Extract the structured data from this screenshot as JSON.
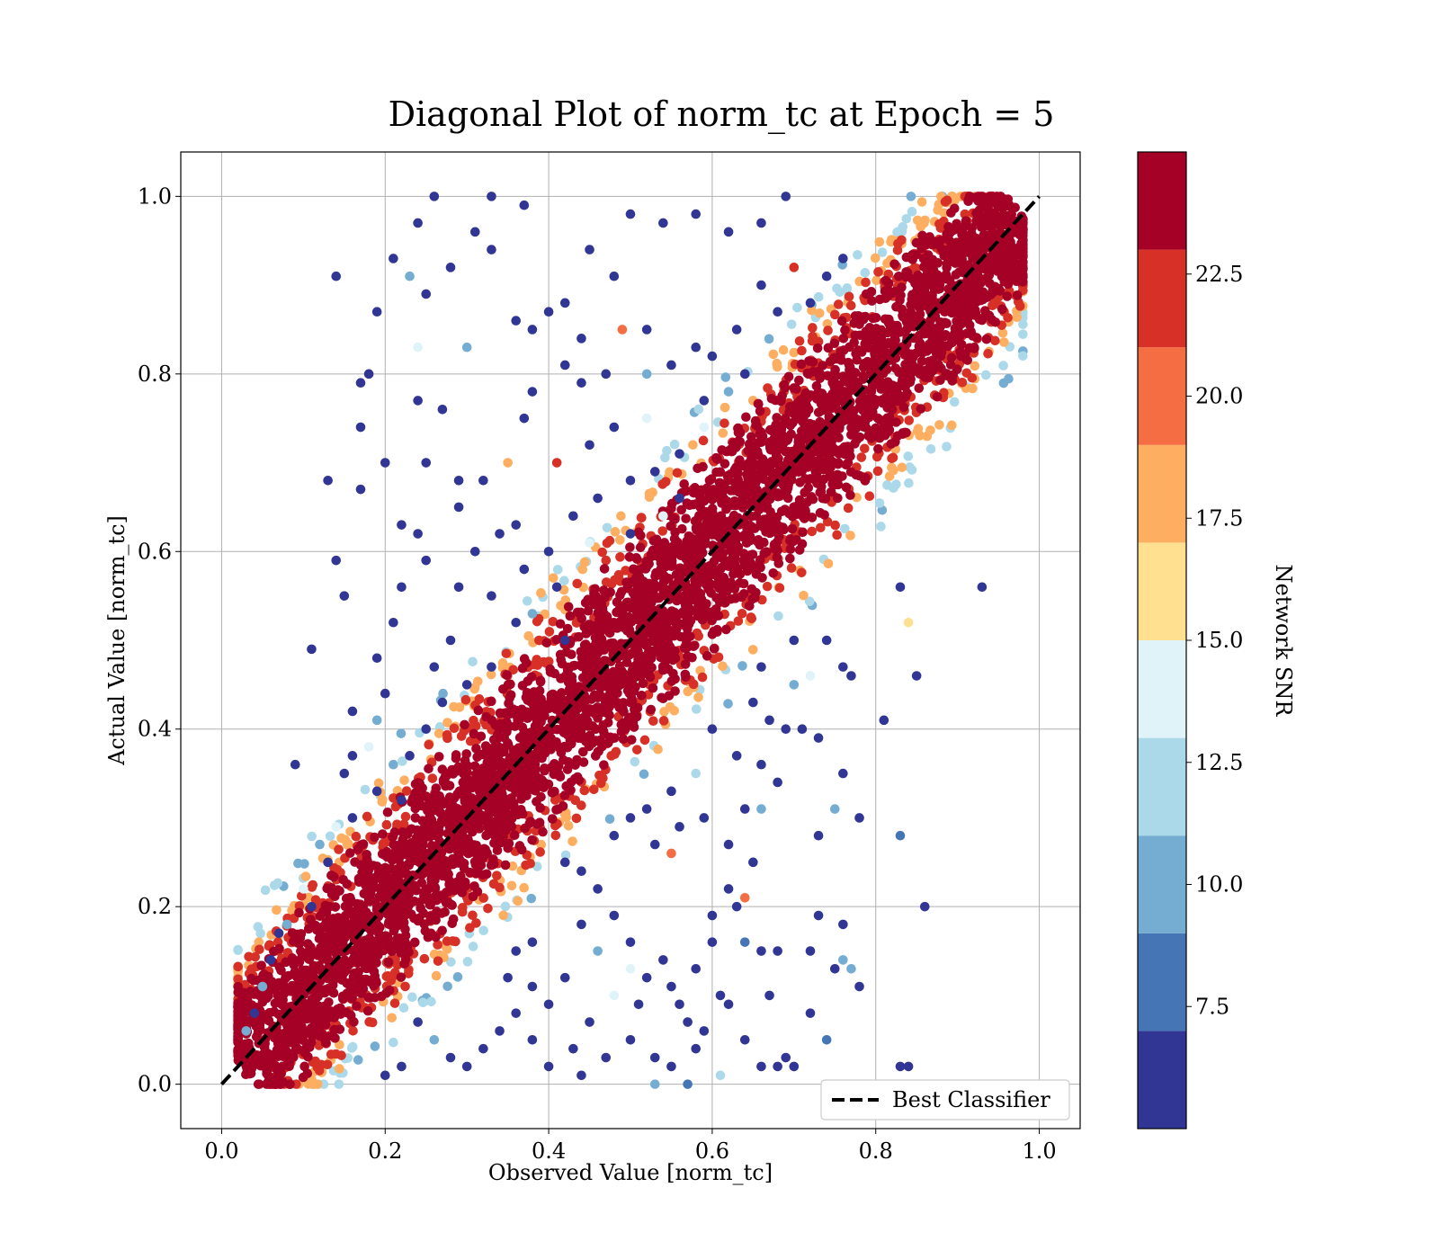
{
  "chart_data": {
    "type": "scatter",
    "title": "Diagonal Plot of norm_tc at Epoch = 5",
    "xlabel": "Observed Value [norm_tc]",
    "ylabel": "Actual Value [norm_tc]",
    "xlim": [
      -0.05,
      1.05
    ],
    "ylim": [
      -0.05,
      1.05
    ],
    "xticks": [
      0.0,
      0.2,
      0.4,
      0.6,
      0.8,
      1.0
    ],
    "yticks": [
      0.0,
      0.2,
      0.4,
      0.6,
      0.8,
      1.0
    ],
    "xtick_labels": [
      "0.0",
      "0.2",
      "0.4",
      "0.6",
      "0.8",
      "1.0"
    ],
    "ytick_labels": [
      "0.0",
      "0.2",
      "0.4",
      "0.6",
      "0.8",
      "1.0"
    ],
    "grid": true,
    "legend": {
      "position": "lower-right",
      "entries": [
        "Best Classifier"
      ]
    },
    "reference_line": {
      "name": "Best Classifier",
      "style": "dashed",
      "color": "#000000",
      "points": [
        [
          0.0,
          0.0
        ],
        [
          1.0,
          1.0
        ]
      ]
    },
    "colorbar": {
      "label": "Network SNR",
      "range": [
        5.0,
        25.0
      ],
      "ticks": [
        7.5,
        10.0,
        12.5,
        15.0,
        17.5,
        20.0,
        22.5
      ],
      "tick_labels": [
        "7.5",
        "10.0",
        "12.5",
        "15.0",
        "17.5",
        "20.0",
        "22.5"
      ],
      "bins": [
        5.0,
        7.0,
        9.0,
        11.0,
        13.0,
        15.0,
        17.0,
        19.0,
        21.0,
        23.0,
        25.0
      ],
      "colors": [
        "#313695",
        "#4575b4",
        "#74add1",
        "#abd9e9",
        "#e0f3f8",
        "#fee090",
        "#fdae61",
        "#f46d43",
        "#d73027",
        "#a50026"
      ]
    },
    "series": [
      {
        "values_note_points": "x=observed, y=actual, c=SNR",
        "points": [
          [
            0.14,
            0.91,
            6
          ],
          [
            0.19,
            0.87,
            6
          ],
          [
            0.17,
            0.79,
            6
          ],
          [
            0.18,
            0.8,
            6
          ],
          [
            0.17,
            0.74,
            6
          ],
          [
            0.13,
            0.68,
            6
          ],
          [
            0.17,
            0.67,
            6
          ],
          [
            0.2,
            0.7,
            6
          ],
          [
            0.14,
            0.59,
            6
          ],
          [
            0.15,
            0.55,
            6
          ],
          [
            0.11,
            0.49,
            6
          ],
          [
            0.09,
            0.36,
            6
          ],
          [
            0.21,
            0.93,
            6
          ],
          [
            0.24,
            0.97,
            6
          ],
          [
            0.26,
            1.0,
            6
          ],
          [
            0.33,
            1.0,
            6
          ],
          [
            0.37,
            0.99,
            6
          ],
          [
            0.31,
            0.96,
            6
          ],
          [
            0.33,
            0.94,
            6
          ],
          [
            0.28,
            0.92,
            6
          ],
          [
            0.25,
            0.89,
            6
          ],
          [
            0.24,
            0.77,
            6
          ],
          [
            0.27,
            0.76,
            6
          ],
          [
            0.25,
            0.7,
            6
          ],
          [
            0.29,
            0.68,
            6
          ],
          [
            0.22,
            0.63,
            6
          ],
          [
            0.24,
            0.62,
            6
          ],
          [
            0.25,
            0.59,
            6
          ],
          [
            0.22,
            0.56,
            6
          ],
          [
            0.3,
            0.83,
            10
          ],
          [
            0.23,
            0.91,
            10
          ],
          [
            0.24,
            0.83,
            13
          ],
          [
            0.21,
            0.52,
            6
          ],
          [
            0.19,
            0.48,
            6
          ],
          [
            0.2,
            0.44,
            6
          ],
          [
            0.16,
            0.42,
            6
          ],
          [
            0.18,
            0.38,
            13
          ],
          [
            0.16,
            0.37,
            6
          ],
          [
            0.19,
            0.41,
            10
          ],
          [
            0.15,
            0.35,
            6
          ],
          [
            0.5,
            0.98,
            6
          ],
          [
            0.54,
            0.97,
            6
          ],
          [
            0.58,
            0.98,
            6
          ],
          [
            0.62,
            0.96,
            6
          ],
          [
            0.66,
            0.97,
            6
          ],
          [
            0.69,
            1.0,
            6
          ],
          [
            0.45,
            0.94,
            6
          ],
          [
            0.48,
            0.91,
            6
          ],
          [
            0.4,
            0.87,
            6
          ],
          [
            0.42,
            0.88,
            6
          ],
          [
            0.44,
            0.84,
            6
          ],
          [
            0.36,
            0.86,
            6
          ],
          [
            0.38,
            0.85,
            6
          ],
          [
            0.42,
            0.81,
            6
          ],
          [
            0.44,
            0.79,
            6
          ],
          [
            0.38,
            0.78,
            6
          ],
          [
            0.37,
            0.75,
            6
          ],
          [
            0.41,
            0.7,
            22
          ],
          [
            0.49,
            0.85,
            20
          ],
          [
            0.47,
            0.8,
            6
          ],
          [
            0.52,
            0.8,
            10
          ],
          [
            0.55,
            0.81,
            6
          ],
          [
            0.58,
            0.83,
            6
          ],
          [
            0.6,
            0.82,
            6
          ],
          [
            0.63,
            0.85,
            6
          ],
          [
            0.7,
            0.92,
            22
          ],
          [
            0.72,
            0.88,
            6
          ],
          [
            0.68,
            0.87,
            6
          ],
          [
            0.74,
            0.91,
            6
          ],
          [
            0.76,
            0.93,
            6
          ],
          [
            0.66,
            0.9,
            6
          ],
          [
            0.52,
            0.85,
            6
          ],
          [
            0.35,
            0.7,
            18
          ],
          [
            0.34,
            0.62,
            6
          ],
          [
            0.36,
            0.63,
            6
          ],
          [
            0.31,
            0.6,
            6
          ],
          [
            0.29,
            0.56,
            6
          ],
          [
            0.28,
            0.5,
            6
          ],
          [
            0.26,
            0.47,
            6
          ],
          [
            0.29,
            0.65,
            6
          ],
          [
            0.32,
            0.68,
            6
          ],
          [
            0.33,
            0.55,
            6
          ],
          [
            0.37,
            0.58,
            6
          ],
          [
            0.45,
            0.72,
            6
          ],
          [
            0.48,
            0.74,
            6
          ],
          [
            0.43,
            0.64,
            6
          ],
          [
            0.46,
            0.66,
            6
          ],
          [
            0.5,
            0.68,
            6
          ],
          [
            0.53,
            0.69,
            6
          ],
          [
            0.56,
            0.71,
            6
          ],
          [
            0.59,
            0.77,
            6
          ],
          [
            0.62,
            0.78,
            10
          ],
          [
            0.64,
            0.8,
            6
          ],
          [
            0.59,
            0.74,
            13
          ],
          [
            0.52,
            0.75,
            13
          ],
          [
            0.41,
            0.56,
            6
          ],
          [
            0.45,
            0.61,
            13
          ],
          [
            0.5,
            0.62,
            6
          ],
          [
            0.54,
            0.64,
            13
          ],
          [
            0.56,
            0.66,
            6
          ],
          [
            0.4,
            0.6,
            6
          ],
          [
            0.38,
            0.53,
            10
          ],
          [
            0.42,
            0.5,
            6
          ],
          [
            0.36,
            0.52,
            6
          ],
          [
            0.33,
            0.47,
            6
          ],
          [
            0.3,
            0.45,
            6
          ],
          [
            0.27,
            0.43,
            6
          ],
          [
            0.25,
            0.4,
            6
          ],
          [
            0.23,
            0.37,
            6
          ],
          [
            0.21,
            0.36,
            10
          ],
          [
            0.22,
            0.32,
            6
          ],
          [
            0.14,
            0.29,
            13
          ],
          [
            0.12,
            0.27,
            10
          ],
          [
            0.13,
            0.25,
            6
          ],
          [
            0.16,
            0.3,
            6
          ],
          [
            0.19,
            0.33,
            6
          ],
          [
            0.1,
            0.22,
            13
          ],
          [
            0.11,
            0.2,
            6
          ],
          [
            0.08,
            0.18,
            10
          ],
          [
            0.07,
            0.17,
            6
          ],
          [
            0.06,
            0.14,
            6
          ],
          [
            0.05,
            0.11,
            10
          ],
          [
            0.04,
            0.08,
            6
          ],
          [
            0.03,
            0.06,
            10
          ],
          [
            0.93,
            0.56,
            6
          ],
          [
            0.83,
            0.56,
            6
          ],
          [
            0.84,
            0.52,
            16
          ],
          [
            0.85,
            0.46,
            6
          ],
          [
            0.81,
            0.41,
            6
          ],
          [
            0.77,
            0.46,
            6
          ],
          [
            0.76,
            0.47,
            6
          ],
          [
            0.74,
            0.5,
            6
          ],
          [
            0.7,
            0.5,
            6
          ],
          [
            0.72,
            0.46,
            14
          ],
          [
            0.66,
            0.47,
            6
          ],
          [
            0.7,
            0.45,
            10
          ],
          [
            0.67,
            0.41,
            6
          ],
          [
            0.65,
            0.43,
            6
          ],
          [
            0.63,
            0.37,
            6
          ],
          [
            0.69,
            0.4,
            6
          ],
          [
            0.71,
            0.4,
            6
          ],
          [
            0.73,
            0.39,
            6
          ],
          [
            0.66,
            0.36,
            6
          ],
          [
            0.76,
            0.35,
            6
          ],
          [
            0.68,
            0.34,
            6
          ],
          [
            0.6,
            0.4,
            6
          ],
          [
            0.58,
            0.35,
            11
          ],
          [
            0.55,
            0.33,
            6
          ],
          [
            0.52,
            0.31,
            6
          ],
          [
            0.5,
            0.3,
            6
          ],
          [
            0.48,
            0.28,
            6
          ],
          [
            0.53,
            0.27,
            6
          ],
          [
            0.56,
            0.29,
            6
          ],
          [
            0.59,
            0.3,
            6
          ],
          [
            0.62,
            0.27,
            6
          ],
          [
            0.65,
            0.25,
            6
          ],
          [
            0.66,
            0.31,
            10
          ],
          [
            0.64,
            0.31,
            6
          ],
          [
            0.55,
            0.26,
            20
          ],
          [
            0.75,
            0.31,
            10
          ],
          [
            0.78,
            0.3,
            6
          ],
          [
            0.83,
            0.28,
            8
          ],
          [
            0.86,
            0.2,
            6
          ],
          [
            0.73,
            0.19,
            6
          ],
          [
            0.76,
            0.18,
            6
          ],
          [
            0.77,
            0.13,
            10
          ],
          [
            0.78,
            0.11,
            6
          ],
          [
            0.75,
            0.13,
            6
          ],
          [
            0.76,
            0.14,
            10
          ],
          [
            0.74,
            0.05,
            8
          ],
          [
            0.72,
            0.08,
            6
          ],
          [
            0.83,
            0.02,
            6
          ],
          [
            0.84,
            0.02,
            6
          ],
          [
            0.68,
            0.02,
            6
          ],
          [
            0.69,
            0.03,
            6
          ],
          [
            0.7,
            0.02,
            6
          ],
          [
            0.66,
            0.02,
            6
          ],
          [
            0.67,
            0.1,
            6
          ],
          [
            0.68,
            0.15,
            6
          ],
          [
            0.66,
            0.15,
            6
          ],
          [
            0.64,
            0.16,
            8
          ],
          [
            0.64,
            0.21,
            20
          ],
          [
            0.62,
            0.22,
            6
          ],
          [
            0.63,
            0.2,
            6
          ],
          [
            0.6,
            0.19,
            6
          ],
          [
            0.6,
            0.16,
            6
          ],
          [
            0.61,
            0.1,
            6
          ],
          [
            0.59,
            0.06,
            6
          ],
          [
            0.57,
            0.07,
            6
          ],
          [
            0.56,
            0.09,
            6
          ],
          [
            0.58,
            0.13,
            6
          ],
          [
            0.55,
            0.11,
            6
          ],
          [
            0.54,
            0.14,
            6
          ],
          [
            0.52,
            0.12,
            6
          ],
          [
            0.5,
            0.13,
            13
          ],
          [
            0.5,
            0.16,
            6
          ],
          [
            0.48,
            0.19,
            6
          ],
          [
            0.46,
            0.22,
            6
          ],
          [
            0.44,
            0.24,
            6
          ],
          [
            0.42,
            0.25,
            6
          ],
          [
            0.44,
            0.18,
            6
          ],
          [
            0.46,
            0.15,
            10
          ],
          [
            0.42,
            0.12,
            6
          ],
          [
            0.4,
            0.09,
            6
          ],
          [
            0.38,
            0.11,
            6
          ],
          [
            0.36,
            0.08,
            6
          ],
          [
            0.34,
            0.06,
            6
          ],
          [
            0.32,
            0.04,
            6
          ],
          [
            0.3,
            0.02,
            6
          ],
          [
            0.28,
            0.03,
            6
          ],
          [
            0.26,
            0.05,
            10
          ],
          [
            0.24,
            0.07,
            6
          ],
          [
            0.22,
            0.02,
            6
          ],
          [
            0.2,
            0.01,
            6
          ],
          [
            0.4,
            0.02,
            6
          ],
          [
            0.44,
            0.01,
            6
          ],
          [
            0.47,
            0.03,
            6
          ],
          [
            0.5,
            0.05,
            6
          ],
          [
            0.53,
            0.03,
            6
          ],
          [
            0.55,
            0.02,
            6
          ],
          [
            0.57,
            0.0,
            8
          ],
          [
            0.53,
            0.0,
            10
          ],
          [
            0.61,
            0.01,
            11
          ],
          [
            0.38,
            0.05,
            6
          ],
          [
            0.36,
            0.15,
            6
          ],
          [
            0.38,
            0.16,
            6
          ],
          [
            0.35,
            0.12,
            6
          ],
          [
            0.48,
            0.1,
            13
          ],
          [
            0.45,
            0.07,
            6
          ],
          [
            0.43,
            0.04,
            6
          ],
          [
            0.51,
            0.09,
            6
          ],
          [
            0.58,
            0.04,
            6
          ],
          [
            0.62,
            0.09,
            6
          ],
          [
            0.64,
            0.05,
            6
          ],
          [
            0.72,
            0.15,
            6
          ],
          [
            0.73,
            0.28,
            6
          ]
        ]
      },
      {
        "band_note": "dense high-SNR band along diagonal",
        "band": {
          "x_range": [
            0.02,
            0.98
          ],
          "core_offset_sd": 0.045,
          "snr_core": 24,
          "snr_mid": 21,
          "snr_edge_warm": 17,
          "snr_edge_cool": 12
        }
      }
    ]
  }
}
